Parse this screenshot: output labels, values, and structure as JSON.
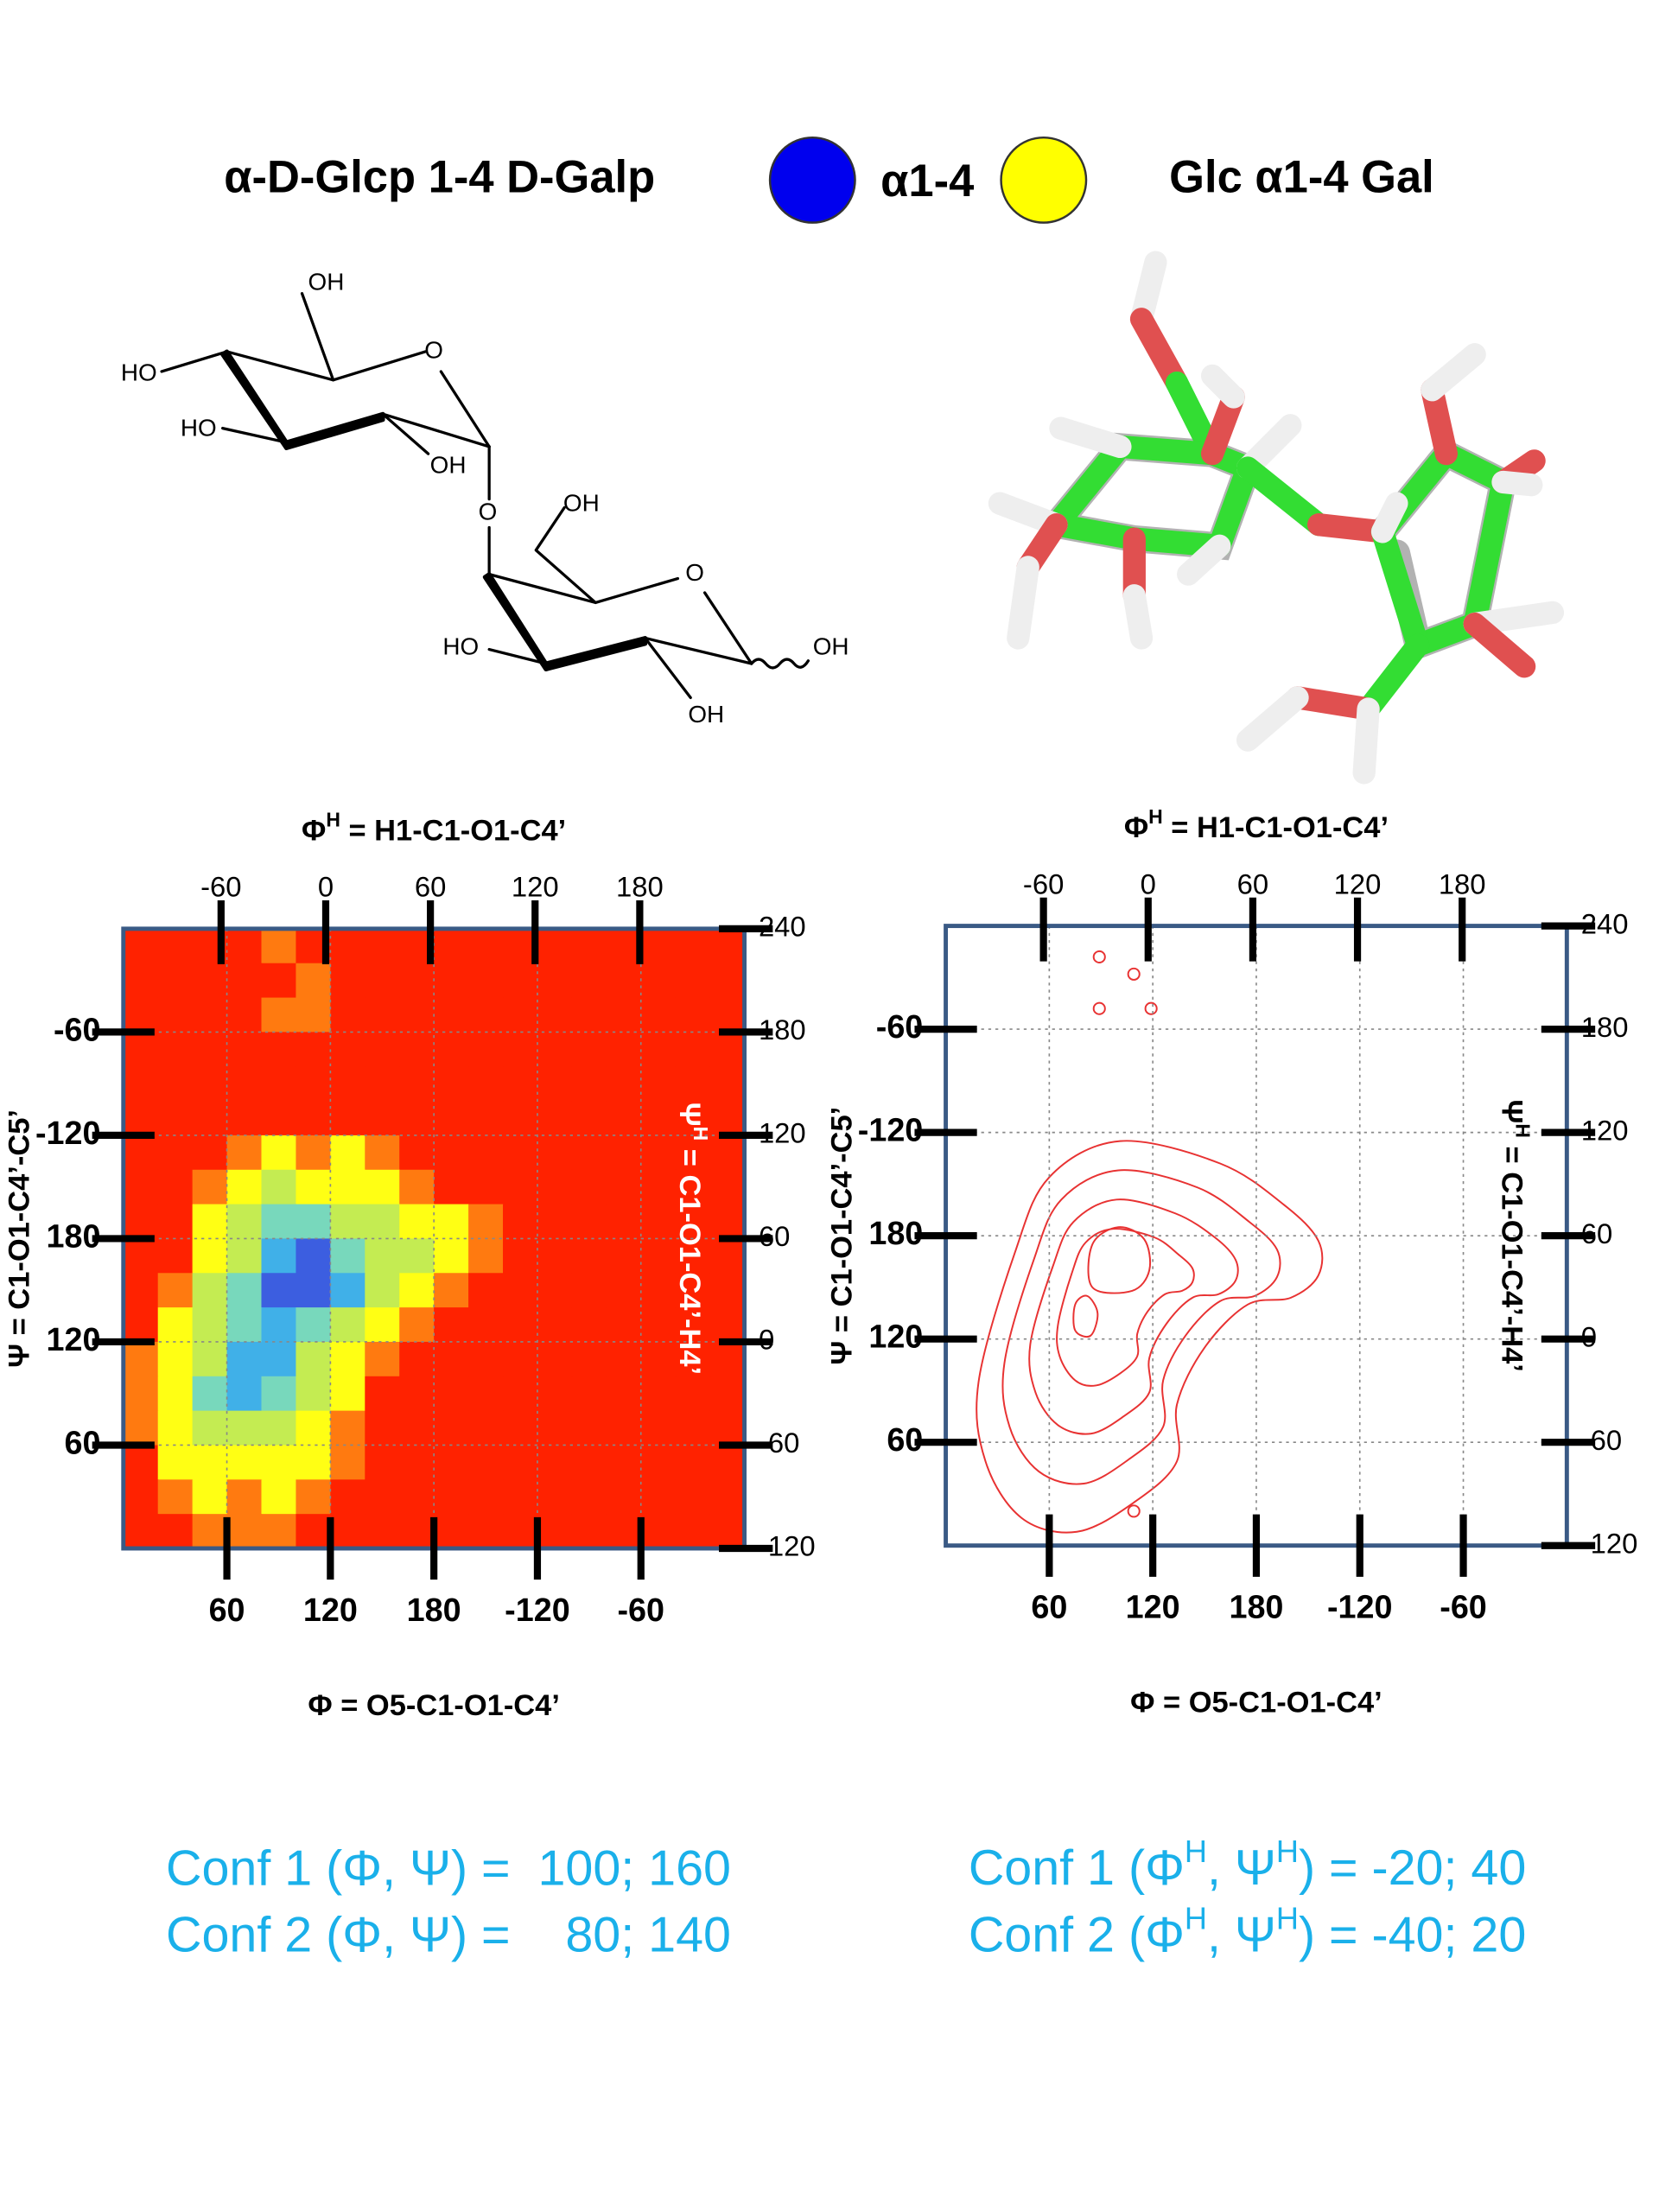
{
  "header": {
    "left": "α-D-Glcp 1-4 D-Galp",
    "center": "α1-4",
    "right": "Glc α1-4 Gal"
  },
  "structure": {
    "labels": [
      "OH",
      "HO",
      "O",
      "HO",
      "OH",
      "O",
      "OH",
      "O",
      "HO",
      "OH",
      "OH"
    ]
  },
  "chart_data": [
    {
      "type": "heatmap",
      "xlabel": "Φ = O5-C1-O1-C4’",
      "x2label": {
        "main": "Φ",
        "sup": "H",
        "rest": " = H1-C1-O1-C4’"
      },
      "ylabel": "Ψ = C1-O1-C4’-C5’",
      "y2label": {
        "main": "Ψ",
        "sup": "H",
        "rest": " = C1-O1-C4’-H4’"
      },
      "y2label_color": "#ffffff",
      "xlim": [
        0,
        360
      ],
      "xticks": [
        60,
        120,
        180,
        {
          "value": 240,
          "label": "-120"
        },
        {
          "value": 300,
          "label": "-60"
        }
      ],
      "x2lim": [
        -116,
        240
      ],
      "x2ticks": [
        -60,
        0,
        60,
        120,
        180
      ],
      "ylim": [
        0,
        360
      ],
      "yticks": [
        60,
        120,
        180,
        {
          "value": 240,
          "label": "-120"
        },
        {
          "value": 300,
          "label": "-60"
        }
      ],
      "y2lim": [
        -120,
        240
      ],
      "y2ticks": [
        -120,
        -60,
        0,
        60,
        120,
        180,
        240
      ],
      "grid": true,
      "colors": [
        "#ff2200",
        "#ff7a10",
        "#ffff14",
        "#c4ec52",
        "#78d8bc",
        "#40b0e8",
        "#3c5ee0"
      ],
      "z": [
        [
          0,
          0,
          0,
          0,
          1,
          0,
          0,
          0,
          0,
          0,
          0,
          0,
          0,
          0,
          0,
          0,
          0,
          0
        ],
        [
          0,
          0,
          0,
          0,
          0,
          1,
          0,
          0,
          0,
          0,
          0,
          0,
          0,
          0,
          0,
          0,
          0,
          0
        ],
        [
          0,
          0,
          0,
          0,
          1,
          1,
          0,
          0,
          0,
          0,
          0,
          0,
          0,
          0,
          0,
          0,
          0,
          0
        ],
        [
          0,
          0,
          0,
          0,
          0,
          0,
          0,
          0,
          0,
          0,
          0,
          0,
          0,
          0,
          0,
          0,
          0,
          0
        ],
        [
          0,
          0,
          0,
          0,
          0,
          0,
          0,
          0,
          0,
          0,
          0,
          0,
          0,
          0,
          0,
          0,
          0,
          0
        ],
        [
          0,
          0,
          0,
          0,
          0,
          0,
          0,
          0,
          0,
          0,
          0,
          0,
          0,
          0,
          0,
          0,
          0,
          0
        ],
        [
          0,
          0,
          0,
          1,
          2,
          1,
          2,
          1,
          0,
          0,
          0,
          0,
          0,
          0,
          0,
          0,
          0,
          0
        ],
        [
          0,
          0,
          1,
          2,
          3,
          2,
          2,
          2,
          1,
          0,
          0,
          0,
          0,
          0,
          0,
          0,
          0,
          0
        ],
        [
          0,
          0,
          2,
          3,
          4,
          4,
          3,
          3,
          2,
          2,
          1,
          0,
          0,
          0,
          0,
          0,
          0,
          0
        ],
        [
          0,
          0,
          2,
          3,
          5,
          6,
          4,
          3,
          3,
          2,
          1,
          0,
          0,
          0,
          0,
          0,
          0,
          0
        ],
        [
          0,
          1,
          3,
          4,
          6,
          6,
          5,
          3,
          2,
          1,
          0,
          0,
          0,
          0,
          0,
          0,
          0,
          0
        ],
        [
          0,
          2,
          3,
          4,
          5,
          4,
          3,
          2,
          1,
          0,
          0,
          0,
          0,
          0,
          0,
          0,
          0,
          0
        ],
        [
          1,
          2,
          3,
          5,
          5,
          3,
          2,
          1,
          0,
          0,
          0,
          0,
          0,
          0,
          0,
          0,
          0,
          0
        ],
        [
          1,
          2,
          4,
          5,
          4,
          3,
          2,
          0,
          0,
          0,
          0,
          0,
          0,
          0,
          0,
          0,
          0,
          0
        ],
        [
          1,
          2,
          3,
          3,
          3,
          2,
          1,
          0,
          0,
          0,
          0,
          0,
          0,
          0,
          0,
          0,
          0,
          0
        ],
        [
          0,
          2,
          2,
          2,
          2,
          2,
          1,
          0,
          0,
          0,
          0,
          0,
          0,
          0,
          0,
          0,
          0,
          0
        ],
        [
          0,
          1,
          2,
          1,
          2,
          1,
          0,
          0,
          0,
          0,
          0,
          0,
          0,
          0,
          0,
          0,
          0,
          0
        ],
        [
          0,
          0,
          1,
          1,
          1,
          0,
          0,
          0,
          0,
          0,
          0,
          0,
          0,
          0,
          0,
          0,
          0,
          0
        ]
      ],
      "annotations": [
        "Conf 1 (Φ, Ψ) =  100; 160",
        "Conf 2 (Φ, Ψ) =    80; 140"
      ]
    },
    {
      "type": "contour",
      "xlabel": "Φ = O5-C1-O1-C4’",
      "x2label": {
        "main": "Φ",
        "sup": "H",
        "rest": " = H1-C1-O1-C4’"
      },
      "ylabel": "Ψ = C1-O1-C4’-C5’",
      "y2label": {
        "main": "Ψ",
        "sup": "H",
        "rest": " = C1-O1-C4’-H4’"
      },
      "y2label_color": "#000000",
      "xlim": [
        0,
        360
      ],
      "xticks": [
        60,
        120,
        180,
        {
          "value": 240,
          "label": "-120"
        },
        {
          "value": 300,
          "label": "-60"
        }
      ],
      "x2lim": [
        -116,
        240
      ],
      "x2ticks": [
        -60,
        0,
        60,
        120,
        180
      ],
      "ylim": [
        0,
        360
      ],
      "yticks": [
        60,
        120,
        180,
        {
          "value": 240,
          "label": "-120"
        },
        {
          "value": 300,
          "label": "-60"
        }
      ],
      "y2lim": [
        -120,
        240
      ],
      "y2ticks": [
        -120,
        -60,
        0,
        60,
        120,
        180,
        240
      ],
      "grid": true,
      "color": "#e83232",
      "contours": [
        [
          [
            19,
            95
          ],
          [
            40,
            170
          ],
          [
            60,
            214
          ],
          [
            101,
            235
          ],
          [
            159,
            222
          ],
          [
            196,
            198
          ],
          [
            216,
            177
          ],
          [
            216,
            157
          ],
          [
            200,
            144
          ],
          [
            175,
            140
          ],
          [
            150,
            115
          ],
          [
            134,
            82
          ],
          [
            134,
            49
          ],
          [
            109,
            25
          ],
          [
            76,
            8
          ],
          [
            44,
            16
          ],
          [
            23,
            49
          ]
        ],
        [
          [
            34,
            106
          ],
          [
            51,
            166
          ],
          [
            67,
            201
          ],
          [
            100,
            218
          ],
          [
            146,
            208
          ],
          [
            176,
            188
          ],
          [
            192,
            172
          ],
          [
            192,
            156
          ],
          [
            179,
            145
          ],
          [
            159,
            142
          ],
          [
            139,
            122
          ],
          [
            126,
            96
          ],
          [
            126,
            69
          ],
          [
            106,
            50
          ],
          [
            80,
            36
          ],
          [
            54,
            43
          ],
          [
            37,
            69
          ]
        ],
        [
          [
            49,
            117
          ],
          [
            62,
            162
          ],
          [
            74,
            188
          ],
          [
            99,
            201
          ],
          [
            133,
            193
          ],
          [
            156,
            179
          ],
          [
            168,
            166
          ],
          [
            168,
            154
          ],
          [
            158,
            146
          ],
          [
            143,
            144
          ],
          [
            128,
            129
          ],
          [
            118,
            109
          ],
          [
            118,
            89
          ],
          [
            103,
            75
          ],
          [
            84,
            65
          ],
          [
            65,
            70
          ],
          [
            52,
            89
          ]
        ],
        [
          [
            65,
            128
          ],
          [
            73,
            158
          ],
          [
            81,
            176
          ],
          [
            97,
            184
          ],
          [
            121,
            179
          ],
          [
            135,
            169
          ],
          [
            143,
            161
          ],
          [
            143,
            153
          ],
          [
            137,
            148
          ],
          [
            127,
            146
          ],
          [
            117,
            136
          ],
          [
            111,
            123
          ],
          [
            111,
            110
          ],
          [
            101,
            100
          ],
          [
            87,
            93
          ],
          [
            75,
            96
          ],
          [
            66,
            110
          ]
        ],
        [
          [
            85,
            150
          ],
          [
            85,
            175
          ],
          [
            100,
            185
          ],
          [
            115,
            178
          ],
          [
            118,
            160
          ],
          [
            108,
            148
          ]
        ],
        [
          [
            75,
            125
          ],
          [
            75,
            140
          ],
          [
            82,
            145
          ],
          [
            88,
            135
          ],
          [
            84,
            122
          ]
        ]
      ],
      "points": [
        [
          89,
          342
        ],
        [
          109,
          332
        ],
        [
          89,
          312
        ],
        [
          119,
          312
        ],
        [
          109,
          20
        ]
      ],
      "annotations": [
        [
          "Conf 1 (Φ",
          "H",
          ", Ψ",
          "H",
          ") = -20; 40"
        ],
        [
          "Conf 2 (Φ",
          "H",
          ", Ψ",
          "H",
          ") = -40; 20"
        ]
      ]
    }
  ]
}
